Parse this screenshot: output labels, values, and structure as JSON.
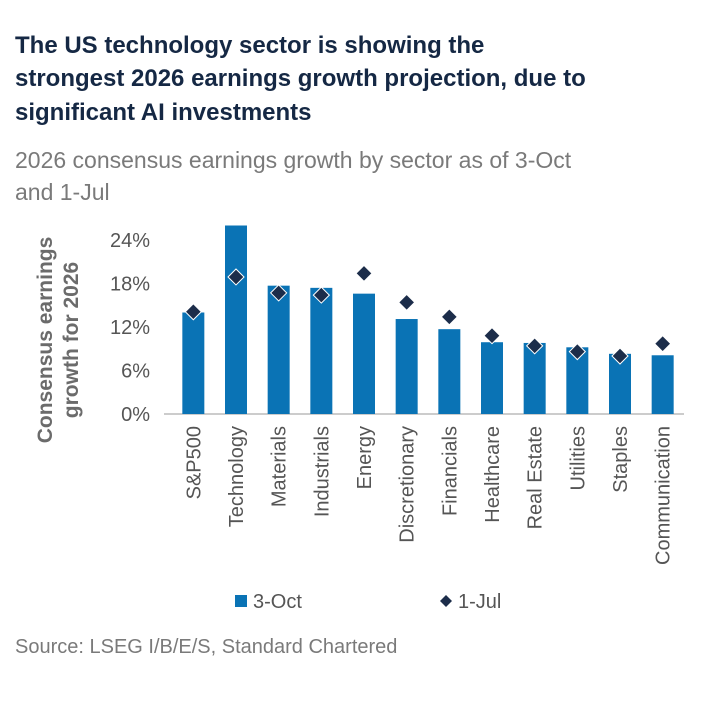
{
  "chart_data": {
    "type": "bar",
    "title": [
      "The US technology sector is showing the",
      "strongest 2026 earnings growth projection, due to",
      "significant AI investments"
    ],
    "subtitle": [
      "2026 consensus earnings growth by sector as of 3-Oct",
      "and 1-Jul"
    ],
    "y_label": [
      "Consensus earnings",
      "growth for 2026"
    ],
    "source": "Source: LSEG I/B/E/S, Standard Chartered",
    "categories": [
      "S&P500",
      "Technology",
      "Materials",
      "Industrials",
      "Energy",
      "Discretionary",
      "Financials",
      "Healthcare",
      "Real Estate",
      "Utilities",
      "Staples",
      "Communication"
    ],
    "series": [
      {
        "name": "3-Oct",
        "color": "#0a73b5",
        "marker": "bar",
        "values": [
          14.0,
          26.0,
          17.7,
          17.4,
          16.6,
          13.1,
          11.7,
          9.9,
          9.8,
          9.2,
          8.3,
          8.1
        ]
      },
      {
        "name": "1-Jul",
        "color": "#1c2d4a",
        "marker": "diamond",
        "values": [
          14.1,
          18.9,
          16.7,
          16.4,
          19.4,
          15.4,
          13.4,
          10.8,
          9.4,
          8.6,
          8.0,
          9.7
        ]
      }
    ],
    "ylim": [
      0,
      24
    ],
    "yticks": [
      {
        "value": 0,
        "label": "0%"
      },
      {
        "value": 6,
        "label": "6%"
      },
      {
        "value": 12,
        "label": "12%"
      },
      {
        "value": 18,
        "label": "18%"
      },
      {
        "value": 24,
        "label": "24%"
      }
    ],
    "grid": false
  }
}
